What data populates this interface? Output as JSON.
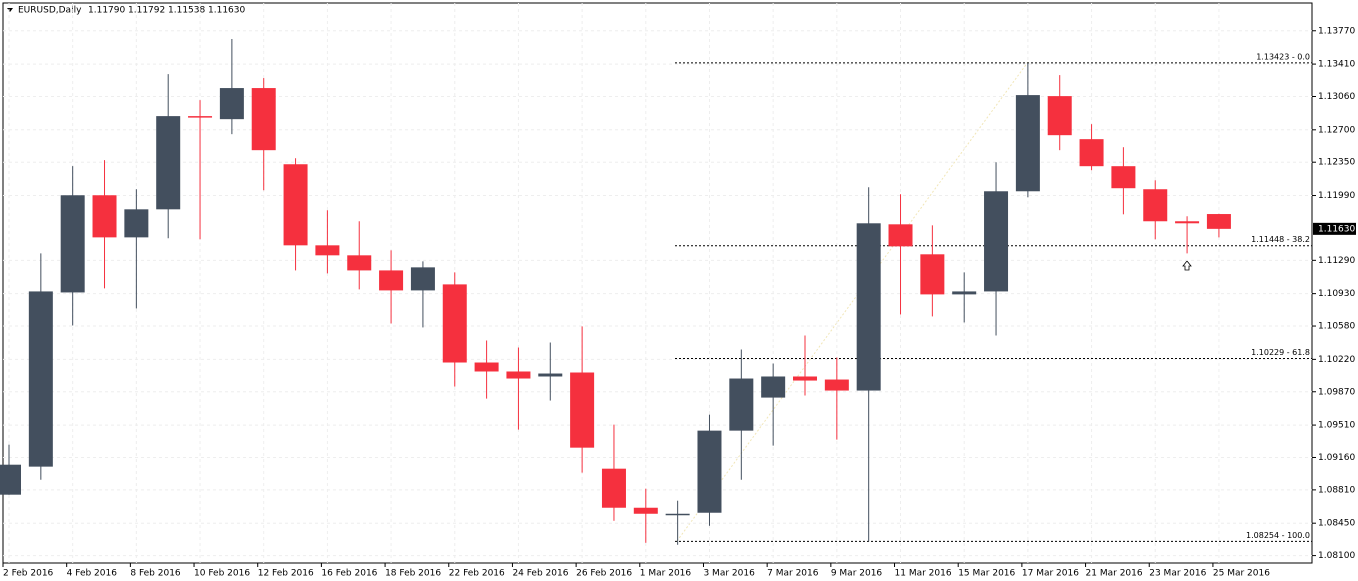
{
  "header": {
    "symbol": "EURUSD,Daily",
    "ohlc": [
      "1.11790",
      "1.11792",
      "1.11538",
      "1.11630"
    ]
  },
  "chart_data": {
    "type": "candlestick",
    "categories": [
      "2 Feb 2016",
      null,
      "4 Feb 2016",
      null,
      "8 Feb 2016",
      null,
      "10 Feb 2016",
      null,
      "12 Feb 2016",
      null,
      "16 Feb 2016",
      null,
      "18 Feb 2016",
      null,
      "22 Feb 2016",
      null,
      "24 Feb 2016",
      null,
      "26 Feb 2016",
      null,
      "1 Mar 2016",
      null,
      "3 Mar 2016",
      null,
      "7 Mar 2016",
      null,
      "9 Mar 2016",
      null,
      "11 Mar 2016",
      null,
      "15 Mar 2016",
      null,
      "17 Mar 2016",
      null,
      "21 Mar 2016",
      null,
      "23 Mar 2016",
      null,
      "25 Mar 2016"
    ],
    "open": [
      1.08758,
      1.09061,
      1.10943,
      1.11993,
      1.11538,
      1.11841,
      1.12848,
      1.12815,
      1.13151,
      1.12328,
      1.11452,
      1.11344,
      1.11181,
      1.10965,
      1.1103,
      1.10186,
      1.10089,
      1.10035,
      1.10078,
      1.09039,
      1.08617,
      1.08541,
      1.08563,
      1.0945,
      1.09807,
      1.10035,
      1.10002,
      1.09883,
      1.11679,
      1.11355,
      1.10922,
      1.10954,
      1.12036,
      1.13064,
      1.12599,
      1.12307,
      1.12058,
      1.11712,
      1.1179
    ],
    "high": [
      1.09299,
      1.11365,
      1.12307,
      1.12372,
      1.12058,
      1.13302,
      1.13021,
      1.13681,
      1.13259,
      1.12393,
      1.11831,
      1.11712,
      1.11398,
      1.11279,
      1.1116,
      1.10424,
      1.10348,
      1.10402,
      1.10576,
      1.09515,
      1.08823,
      1.08693,
      1.09623,
      1.10327,
      1.10175,
      1.10478,
      1.1024,
      1.12079,
      1.12004,
      1.11668,
      1.1116,
      1.1235,
      1.13423,
      1.13291,
      1.12761,
      1.12512,
      1.12155,
      1.11766,
      1.11792
    ],
    "low": [
      1.08758,
      1.0892,
      1.10586,
      1.10987,
      1.1077,
      1.11528,
      1.11517,
      1.12653,
      1.12047,
      1.11181,
      1.11149,
      1.10976,
      1.10608,
      1.10565,
      1.09926,
      1.09796,
      1.09461,
      1.09775,
      1.08996,
      1.08476,
      1.08238,
      1.08217,
      1.08422,
      1.0892,
      1.09288,
      1.09829,
      1.09353,
      1.08254,
      1.10705,
      1.10684,
      1.10619,
      1.10478,
      1.11971,
      1.1248,
      1.12263,
      1.11787,
      1.11517,
      1.11365,
      1.11538
    ],
    "close": [
      1.09082,
      1.10954,
      1.11993,
      1.11538,
      1.11841,
      1.12848,
      1.12837,
      1.13151,
      1.1248,
      1.11452,
      1.11344,
      1.11181,
      1.10965,
      1.11214,
      1.10186,
      1.10089,
      1.10013,
      1.10067,
      1.09266,
      1.08617,
      1.08552,
      1.08552,
      1.0945,
      1.10013,
      1.10035,
      1.09991,
      1.09883,
      1.1169,
      1.11441,
      1.10922,
      1.10954,
      1.12036,
      1.13075,
      1.12642,
      1.12307,
      1.12069,
      1.11712,
      1.1169,
      1.1163
    ],
    "up_color": "#434f5e",
    "down_color": "#f5303e",
    "ylim": [
      1.0802,
      1.1407
    ],
    "yticks": [
      {
        "value": 1.1377,
        "label": "1.13770"
      },
      {
        "value": 1.1341,
        "label": "1.13410"
      },
      {
        "value": 1.1306,
        "label": "1.13060"
      },
      {
        "value": 1.127,
        "label": "1.12700"
      },
      {
        "value": 1.1235,
        "label": "1.12350"
      },
      {
        "value": 1.1199,
        "label": "1.11990"
      },
      {
        "value": 1.1129,
        "label": "1.11290"
      },
      {
        "value": 1.1093,
        "label": "1.10930"
      },
      {
        "value": 1.1058,
        "label": "1.10580"
      },
      {
        "value": 1.1022,
        "label": "1.10220"
      },
      {
        "value": 1.0987,
        "label": "1.09870"
      },
      {
        "value": 1.0951,
        "label": "1.09510"
      },
      {
        "value": 1.0916,
        "label": "1.09160"
      },
      {
        "value": 1.0881,
        "label": "1.08810"
      },
      {
        "value": 1.0845,
        "label": "1.08450"
      },
      {
        "value": 1.081,
        "label": "1.08100"
      }
    ],
    "current_price": {
      "value": 1.1163,
      "label": "1.11630"
    },
    "fib_levels": [
      {
        "value": 1.13423,
        "label": "1.13423 - 0.0"
      },
      {
        "value": 1.11448,
        "label": "1.11448 - 38.2"
      },
      {
        "value": 1.10229,
        "label": "1.10229 - 61.8"
      },
      {
        "value": 1.08254,
        "label": "1.08254 - 100.0"
      }
    ],
    "grid": true
  }
}
